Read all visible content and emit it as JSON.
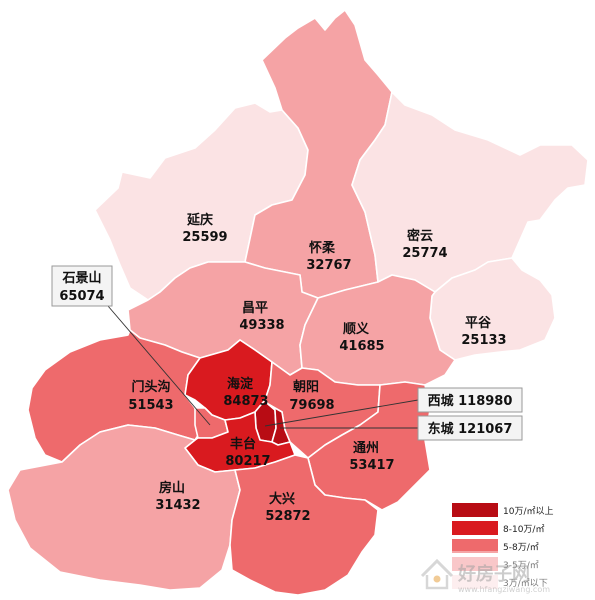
{
  "colors": {
    "over10": "#b80c14",
    "r8to10": "#d91a1f",
    "r5to8": "#ee6a6c",
    "r3to5": "#f5a3a5",
    "under3": "#fbe3e4",
    "border": "#ffffff"
  },
  "districts": {
    "yanqing": {
      "name": "延庆",
      "price": "25599",
      "level": "under3"
    },
    "huairou": {
      "name": "怀柔",
      "price": "32767",
      "level": "r3to5"
    },
    "miyun": {
      "name": "密云",
      "price": "25774",
      "level": "under3"
    },
    "pinggu": {
      "name": "平谷",
      "price": "25133",
      "level": "under3"
    },
    "changping": {
      "name": "昌平",
      "price": "49338",
      "level": "r3to5"
    },
    "shunyi": {
      "name": "顺义",
      "price": "41685",
      "level": "r3to5"
    },
    "mentougou": {
      "name": "门头沟",
      "price": "51543",
      "level": "r5to8"
    },
    "haidian": {
      "name": "海淀",
      "price": "84873",
      "level": "r8to10"
    },
    "chaoyang": {
      "name": "朝阳",
      "price": "79698",
      "level": "r5to8"
    },
    "fengtai": {
      "name": "丰台",
      "price": "80217",
      "level": "r8to10"
    },
    "tongzhou": {
      "name": "通州",
      "price": "53417",
      "level": "r5to8"
    },
    "fangshan": {
      "name": "房山",
      "price": "31432",
      "level": "r3to5"
    },
    "daxing": {
      "name": "大兴",
      "price": "52872",
      "level": "r5to8"
    },
    "shijingshan": {
      "name": "石景山",
      "price": "65074",
      "level": "r5to8"
    },
    "xicheng": {
      "name": "西城",
      "price": "118980",
      "level": "over10"
    },
    "dongcheng": {
      "name": "东城",
      "price": "121067",
      "level": "over10"
    }
  },
  "callouts": {
    "shijingshan": {
      "name": "石景山",
      "price": "65074"
    },
    "xicheng": {
      "text": "西城 118980"
    },
    "dongcheng": {
      "text": "东城 121067"
    }
  },
  "legend": [
    {
      "label": "10万/㎡以上",
      "level": "over10"
    },
    {
      "label": "8-10万/㎡",
      "level": "r8to10"
    },
    {
      "label": "5-8万/㎡",
      "level": "r5to8"
    },
    {
      "label": "3-5万/㎡",
      "level": "r3to5"
    },
    {
      "label": "3万/㎡以下",
      "level": "under3"
    }
  ],
  "watermark": {
    "brand": "好房子网",
    "url": "www.hfangziwang.com"
  }
}
